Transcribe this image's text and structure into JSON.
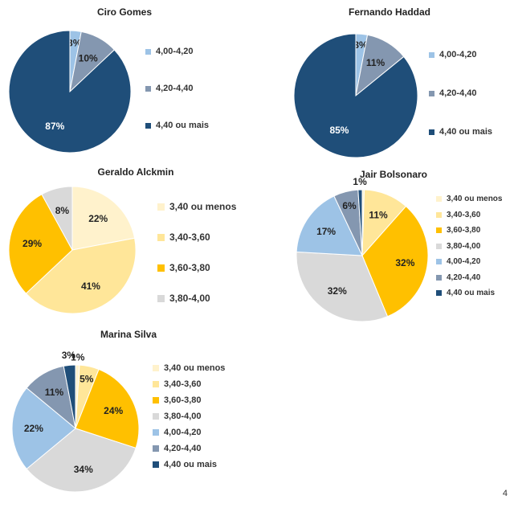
{
  "page": {
    "number": "4"
  },
  "colors": {
    "3,40 ou menos": "#FFF2CC",
    "3,40-3,60": "#FFE699",
    "3,60-3,80": "#FFC000",
    "3,80-4,00": "#D9D9D9",
    "4,00-4,20": "#9DC3E6",
    "4,20-4,40": "#8497B0",
    "4,40 ou mais": "#1F4E79"
  },
  "chart_data": [
    {
      "type": "pie",
      "title": "Ciro Gomes",
      "categories": [
        "4,00-4,20",
        "4,20-4,40",
        "4,40 ou mais"
      ],
      "values": [
        3,
        10,
        87
      ],
      "labels": [
        "3%",
        "10%",
        "87%"
      ]
    },
    {
      "type": "pie",
      "title": "Fernando Haddad",
      "categories": [
        "4,00-4,20",
        "4,20-4,40",
        "4,40 ou mais"
      ],
      "values": [
        3,
        11,
        85
      ],
      "labels": [
        "3%",
        "11%",
        "85%"
      ]
    },
    {
      "type": "pie",
      "title": "Geraldo Alckmin",
      "categories": [
        "3,40 ou menos",
        "3,40-3,60",
        "3,60-3,80",
        "3,80-4,00"
      ],
      "values": [
        22,
        41,
        29,
        8
      ],
      "labels": [
        "22%",
        "41%",
        "29%",
        "8%"
      ]
    },
    {
      "type": "pie",
      "title": "Jair Bolsonaro",
      "categories": [
        "3,40 ou menos",
        "3,40-3,60",
        "3,60-3,80",
        "3,80-4,00",
        "4,00-4,20",
        "4,20-4,40",
        "4,40 ou mais"
      ],
      "values": [
        0.5,
        11,
        32,
        32,
        17,
        6,
        1
      ],
      "labels": [
        "",
        "11%",
        "32%",
        "32%",
        "17%",
        "6%",
        "1%"
      ]
    },
    {
      "type": "pie",
      "title": "Marina Silva",
      "categories": [
        "3,40 ou menos",
        "3,40-3,60",
        "3,60-3,80",
        "3,80-4,00",
        "4,00-4,20",
        "4,20-4,40",
        "4,40 ou mais"
      ],
      "values": [
        1,
        5,
        24,
        34,
        22,
        11,
        3
      ],
      "labels": [
        "1%",
        "5%",
        "24%",
        "34%",
        "22%",
        "11%",
        "3%"
      ]
    }
  ]
}
